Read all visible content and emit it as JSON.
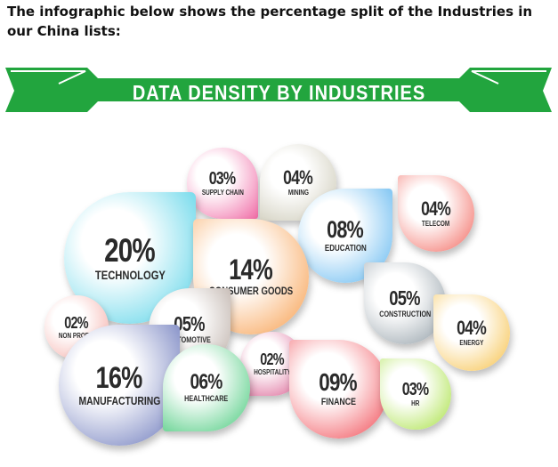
{
  "intro_text": "The infographic below shows the percentage split of the Industries in our China lists:",
  "chart_data": {
    "type": "bubble",
    "title": "DATA DENSITY BY INDUSTRIES",
    "unit": "%",
    "series": [
      {
        "name": "SUPPLY CHAIN",
        "label": "03%",
        "value": 3,
        "color": "#f06aa5"
      },
      {
        "name": "MINING",
        "label": "04%",
        "value": 4,
        "color": "#c9c6b2"
      },
      {
        "name": "TELECOM",
        "label": "04%",
        "value": 4,
        "color": "#f2655c"
      },
      {
        "name": "TECHNOLOGY",
        "label": "20%",
        "value": 20,
        "color": "#4dd0e6"
      },
      {
        "name": "EDUCATION",
        "label": "08%",
        "value": 8,
        "color": "#5ab4ef"
      },
      {
        "name": "CONSUMER GOODS",
        "label": "14%",
        "value": 14,
        "color": "#f79a46"
      },
      {
        "name": "CONSTRUCTION",
        "label": "05%",
        "value": 5,
        "color": "#8d9aa3"
      },
      {
        "name": "NON PROFIT",
        "label": "02%",
        "value": 2,
        "color": "#f4a6a0"
      },
      {
        "name": "AUTOMOTIVE",
        "label": "05%",
        "value": 5,
        "color": "#b8aaa2"
      },
      {
        "name": "ENERGY",
        "label": "04%",
        "value": 4,
        "color": "#f6bf44"
      },
      {
        "name": "MANUFACTURING",
        "label": "16%",
        "value": 16,
        "color": "#6472b8"
      },
      {
        "name": "HOSPITALITY",
        "label": "02%",
        "value": 2,
        "color": "#d95a8e"
      },
      {
        "name": "FINANCE",
        "label": "09%",
        "value": 9,
        "color": "#f0434d"
      },
      {
        "name": "HEALTHCARE",
        "label": "06%",
        "value": 6,
        "color": "#43c878"
      },
      {
        "name": "HR",
        "label": "03%",
        "value": 3,
        "color": "#a6e040"
      }
    ]
  }
}
